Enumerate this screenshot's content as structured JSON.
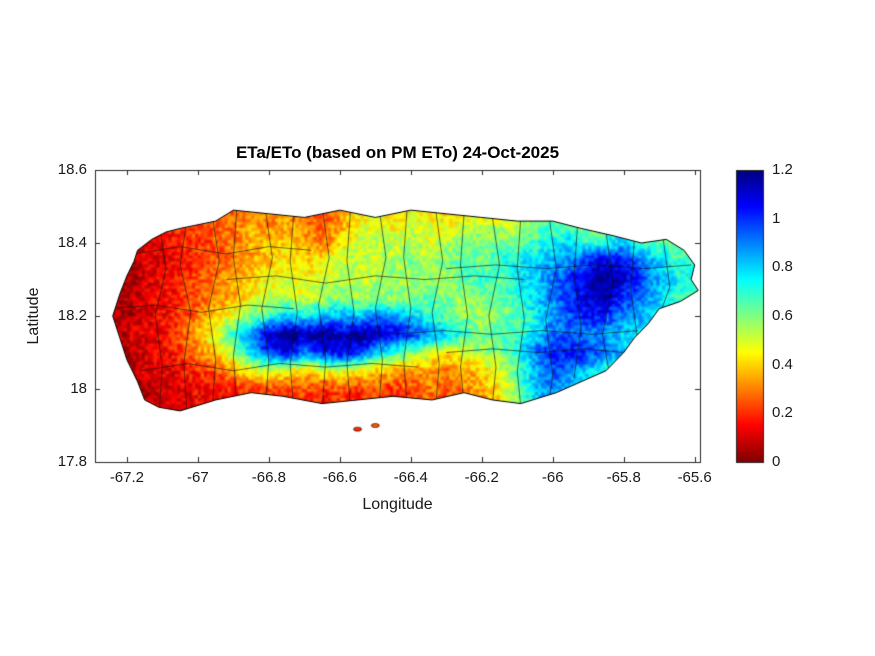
{
  "chart_data": {
    "type": "heatmap",
    "title": "ETa/ETo (based on PM ETo) 24-Oct-2025",
    "xlabel": "Longitude",
    "ylabel": "Latitude",
    "xlim": [
      -67.29,
      -65.585
    ],
    "ylim": [
      17.8,
      18.6
    ],
    "x_ticks": [
      -67.2,
      -67,
      -66.8,
      -66.6,
      -66.4,
      -66.2,
      -66,
      -65.8,
      -65.6
    ],
    "x_tick_labels": [
      "-67.2",
      "-67",
      "-66.8",
      "-66.6",
      "-66.4",
      "-66.2",
      "-66",
      "-65.8",
      "-65.6"
    ],
    "y_ticks": [
      17.8,
      18,
      18.2,
      18.4,
      18.6
    ],
    "y_tick_labels": [
      "17.8",
      "18",
      "18.2",
      "18.4",
      "18.6"
    ],
    "grid_on": false,
    "legend": "colorbar-right",
    "colorbar": {
      "clim": [
        0,
        1.2
      ],
      "ticks": [
        0,
        0.2,
        0.4,
        0.6,
        0.8,
        1,
        1.2
      ],
      "tick_labels": [
        "0",
        "0.2",
        "0.4",
        "0.6",
        "0.8",
        "1",
        "1.2"
      ],
      "colormap_stops": {
        "values": [
          0,
          0.15,
          0.3,
          0.45,
          0.6,
          0.75,
          0.9,
          1.05,
          1.2
        ],
        "colors": [
          "#800000",
          "#FF0000",
          "#FF8000",
          "#FFFF00",
          "#80FF80",
          "#00FFFF",
          "#0080FF",
          "#0000FF",
          "#000080"
        ]
      }
    },
    "grid": {
      "lon_start": -67.25,
      "lon_step": 0.05,
      "lat_start": 18.5,
      "lat_step": -0.05,
      "values": [
        [
          null,
          null,
          null,
          null,
          null,
          null,
          null,
          0.25,
          0.3,
          0.3,
          0.35,
          0.25,
          0.2,
          0.3,
          0.4,
          0.45,
          0.4,
          0.45,
          0.4,
          0.35,
          0.4,
          0.35,
          null,
          null,
          null,
          null,
          null,
          null,
          null,
          null,
          null,
          null,
          null,
          null
        ],
        [
          null,
          null,
          null,
          0.15,
          0.2,
          0.25,
          0.25,
          0.3,
          0.35,
          0.3,
          0.35,
          0.3,
          0.25,
          0.35,
          0.45,
          0.5,
          0.45,
          0.5,
          0.5,
          0.45,
          0.5,
          0.55,
          0.5,
          0.55,
          0.6,
          0.65,
          0.6,
          0.55,
          0.6,
          null,
          null,
          null,
          null,
          null
        ],
        [
          null,
          null,
          0.1,
          0.15,
          0.2,
          0.2,
          0.25,
          0.3,
          0.35,
          0.4,
          0.4,
          0.35,
          0.3,
          0.4,
          0.5,
          0.55,
          0.5,
          0.55,
          0.5,
          0.55,
          0.6,
          0.6,
          0.65,
          0.6,
          0.7,
          0.75,
          0.8,
          0.7,
          0.75,
          0.8,
          0.7,
          0.65,
          0.6,
          0.55
        ],
        [
          null,
          0.05,
          0.1,
          0.1,
          0.15,
          0.2,
          0.25,
          0.3,
          0.35,
          0.4,
          0.45,
          0.4,
          0.45,
          0.5,
          0.55,
          0.5,
          0.55,
          0.6,
          0.55,
          0.6,
          0.65,
          0.6,
          0.7,
          0.75,
          0.8,
          0.85,
          0.9,
          1.0,
          1.1,
          1.05,
          0.9,
          0.8,
          0.7,
          0.65
        ],
        [
          null,
          0.05,
          0.1,
          0.15,
          0.2,
          0.25,
          0.3,
          0.35,
          0.4,
          0.45,
          0.5,
          0.45,
          0.5,
          0.55,
          0.5,
          0.55,
          0.6,
          0.55,
          0.6,
          0.55,
          0.65,
          0.7,
          0.65,
          0.75,
          0.8,
          0.9,
          1.0,
          1.1,
          1.2,
          1.1,
          0.95,
          0.85,
          0.75,
          0.7
        ],
        [
          null,
          0.05,
          0.1,
          0.15,
          0.2,
          0.25,
          0.3,
          0.35,
          0.45,
          0.5,
          0.55,
          0.5,
          0.55,
          0.6,
          0.55,
          0.6,
          0.55,
          0.6,
          0.65,
          0.6,
          0.55,
          0.6,
          0.65,
          0.7,
          0.8,
          0.9,
          1.0,
          1.1,
          1.15,
          1.0,
          0.9,
          0.8,
          0.7,
          0.65
        ],
        [
          0.05,
          0.05,
          0.1,
          0.15,
          0.2,
          0.3,
          0.4,
          0.5,
          0.6,
          0.7,
          0.8,
          0.75,
          0.8,
          0.85,
          0.8,
          0.9,
          0.85,
          0.8,
          0.7,
          0.65,
          0.6,
          0.55,
          0.6,
          0.65,
          0.75,
          0.85,
          0.95,
          1.05,
          1.0,
          0.9,
          0.85,
          0.75,
          0.7,
          null
        ],
        [
          0.05,
          0.1,
          0.1,
          0.15,
          0.25,
          0.35,
          0.5,
          0.7,
          0.9,
          1.1,
          1.2,
          1.15,
          1.2,
          1.1,
          1.2,
          1.15,
          1.1,
          1.0,
          0.9,
          0.8,
          0.7,
          0.6,
          0.65,
          0.7,
          0.8,
          0.9,
          0.95,
          0.9,
          0.85,
          0.8,
          0.75,
          0.7,
          null,
          null
        ],
        [
          null,
          0.05,
          0.1,
          0.15,
          0.2,
          0.3,
          0.4,
          0.55,
          0.8,
          1.0,
          1.1,
          0.9,
          1.0,
          1.1,
          1.0,
          0.8,
          0.7,
          0.6,
          0.5,
          0.45,
          0.5,
          0.55,
          0.6,
          0.7,
          0.9,
          1.0,
          1.05,
          1.0,
          0.9,
          0.8,
          0.7,
          null,
          null,
          null
        ],
        [
          null,
          0.05,
          0.1,
          0.1,
          0.15,
          0.2,
          0.25,
          0.35,
          0.45,
          0.5,
          0.45,
          0.4,
          0.45,
          0.5,
          0.45,
          0.4,
          0.35,
          0.3,
          0.35,
          0.3,
          0.35,
          0.4,
          0.5,
          0.65,
          0.85,
          0.95,
          0.9,
          0.8,
          0.7,
          null,
          null,
          null,
          null,
          null
        ],
        [
          null,
          null,
          0.05,
          0.1,
          0.1,
          0.15,
          0.15,
          0.2,
          0.2,
          0.25,
          0.2,
          0.25,
          0.2,
          0.25,
          0.2,
          0.25,
          0.2,
          0.25,
          0.3,
          0.25,
          0.3,
          0.35,
          0.45,
          0.6,
          0.8,
          0.9,
          0.8,
          0.7,
          null,
          null,
          null,
          null,
          null,
          null
        ],
        [
          null,
          null,
          null,
          0.1,
          0.1,
          0.15,
          0.1,
          0.15,
          0.15,
          0.2,
          0.15,
          0.2,
          0.15,
          0.2,
          0.15,
          0.2,
          0.15,
          0.2,
          0.2,
          0.25,
          0.25,
          0.3,
          null,
          null,
          null,
          null,
          null,
          null,
          null,
          null,
          null,
          null,
          null,
          null
        ]
      ]
    },
    "island_outline": [
      [
        -67.17,
        18.38
      ],
      [
        -67.13,
        18.41
      ],
      [
        -67.09,
        18.43
      ],
      [
        -67.05,
        18.44
      ],
      [
        -66.95,
        18.46
      ],
      [
        -66.9,
        18.49
      ],
      [
        -66.8,
        18.48
      ],
      [
        -66.7,
        18.47
      ],
      [
        -66.6,
        18.49
      ],
      [
        -66.5,
        18.47
      ],
      [
        -66.4,
        18.49
      ],
      [
        -66.3,
        18.48
      ],
      [
        -66.2,
        18.47
      ],
      [
        -66.1,
        18.46
      ],
      [
        -66.0,
        18.46
      ],
      [
        -65.92,
        18.44
      ],
      [
        -65.83,
        18.42
      ],
      [
        -65.75,
        18.4
      ],
      [
        -65.68,
        18.41
      ],
      [
        -65.63,
        18.38
      ],
      [
        -65.6,
        18.34
      ],
      [
        -65.61,
        18.3
      ],
      [
        -65.59,
        18.27
      ],
      [
        -65.64,
        18.24
      ],
      [
        -65.7,
        18.22
      ],
      [
        -65.73,
        18.18
      ],
      [
        -65.77,
        18.14
      ],
      [
        -65.8,
        18.1
      ],
      [
        -65.85,
        18.05
      ],
      [
        -65.92,
        18.02
      ],
      [
        -65.99,
        17.99
      ],
      [
        -66.09,
        17.96
      ],
      [
        -66.17,
        17.97
      ],
      [
        -66.25,
        17.99
      ],
      [
        -66.34,
        17.97
      ],
      [
        -66.45,
        17.98
      ],
      [
        -66.55,
        17.97
      ],
      [
        -66.65,
        17.96
      ],
      [
        -66.76,
        17.98
      ],
      [
        -66.85,
        17.99
      ],
      [
        -66.95,
        17.97
      ],
      [
        -67.05,
        17.94
      ],
      [
        -67.11,
        17.95
      ],
      [
        -67.15,
        17.97
      ],
      [
        -67.17,
        18.02
      ],
      [
        -67.2,
        18.08
      ],
      [
        -67.22,
        18.14
      ],
      [
        -67.24,
        18.2
      ],
      [
        -67.22,
        18.26
      ],
      [
        -67.2,
        18.31
      ],
      [
        -67.18,
        18.35
      ]
    ],
    "boundaries": [
      [
        [
          -67.11,
          18.46
        ],
        [
          -67.09,
          18.33
        ],
        [
          -67.12,
          18.2
        ],
        [
          -67.1,
          18.06
        ],
        [
          -67.11,
          17.93
        ]
      ],
      [
        [
          -67.03,
          18.47
        ],
        [
          -67.05,
          18.34
        ],
        [
          -67.02,
          18.21
        ],
        [
          -67.04,
          18.07
        ],
        [
          -67.03,
          17.93
        ]
      ],
      [
        [
          -66.96,
          18.48
        ],
        [
          -66.94,
          18.35
        ],
        [
          -66.97,
          18.22
        ],
        [
          -66.95,
          18.08
        ],
        [
          -66.96,
          17.94
        ]
      ],
      [
        [
          -66.89,
          18.5
        ],
        [
          -66.9,
          18.36
        ],
        [
          -66.88,
          18.23
        ],
        [
          -66.9,
          18.09
        ],
        [
          -66.89,
          17.95
        ]
      ],
      [
        [
          -66.81,
          18.49
        ],
        [
          -66.79,
          18.36
        ],
        [
          -66.82,
          18.22
        ],
        [
          -66.8,
          18.08
        ],
        [
          -66.81,
          17.95
        ]
      ],
      [
        [
          -66.73,
          18.48
        ],
        [
          -66.74,
          18.35
        ],
        [
          -66.72,
          18.21
        ],
        [
          -66.74,
          18.07
        ],
        [
          -66.73,
          17.94
        ]
      ],
      [
        [
          -66.65,
          18.5
        ],
        [
          -66.63,
          18.36
        ],
        [
          -66.66,
          18.23
        ],
        [
          -66.64,
          18.08
        ],
        [
          -66.65,
          17.94
        ]
      ],
      [
        [
          -66.57,
          18.49
        ],
        [
          -66.58,
          18.35
        ],
        [
          -66.56,
          18.21
        ],
        [
          -66.58,
          18.07
        ],
        [
          -66.57,
          17.95
        ]
      ],
      [
        [
          -66.49,
          18.5
        ],
        [
          -66.47,
          18.36
        ],
        [
          -66.5,
          18.22
        ],
        [
          -66.48,
          18.08
        ],
        [
          -66.49,
          17.95
        ]
      ],
      [
        [
          -66.41,
          18.5
        ],
        [
          -66.42,
          18.36
        ],
        [
          -66.4,
          18.22
        ],
        [
          -66.42,
          18.08
        ],
        [
          -66.41,
          17.95
        ]
      ],
      [
        [
          -66.33,
          18.49
        ],
        [
          -66.31,
          18.35
        ],
        [
          -66.34,
          18.21
        ],
        [
          -66.32,
          18.07
        ],
        [
          -66.33,
          17.95
        ]
      ],
      [
        [
          -66.25,
          18.48
        ],
        [
          -66.26,
          18.34
        ],
        [
          -66.24,
          18.2
        ],
        [
          -66.26,
          18.06
        ],
        [
          -66.25,
          17.96
        ]
      ],
      [
        [
          -66.17,
          18.47
        ],
        [
          -66.15,
          18.34
        ],
        [
          -66.18,
          18.2
        ],
        [
          -66.16,
          18.06
        ],
        [
          -66.17,
          17.96
        ]
      ],
      [
        [
          -66.09,
          18.47
        ],
        [
          -66.1,
          18.33
        ],
        [
          -66.08,
          18.19
        ],
        [
          -66.1,
          18.05
        ],
        [
          -66.09,
          17.95
        ]
      ],
      [
        [
          -66.01,
          18.47
        ],
        [
          -65.99,
          18.33
        ],
        [
          -66.02,
          18.19
        ],
        [
          -66.0,
          18.04
        ],
        [
          -66.01,
          17.97
        ]
      ],
      [
        [
          -65.93,
          18.45
        ],
        [
          -65.94,
          18.31
        ],
        [
          -65.92,
          18.17
        ],
        [
          -65.94,
          18.03
        ]
      ],
      [
        [
          -65.85,
          18.43
        ],
        [
          -65.83,
          18.29
        ],
        [
          -65.86,
          18.15
        ],
        [
          -65.84,
          18.04
        ]
      ],
      [
        [
          -65.77,
          18.41
        ],
        [
          -65.78,
          18.27
        ],
        [
          -65.76,
          18.13
        ]
      ],
      [
        [
          -65.69,
          18.42
        ],
        [
          -65.67,
          18.28
        ],
        [
          -65.7,
          18.2
        ]
      ],
      [
        [
          -67.18,
          18.37
        ],
        [
          -67.05,
          18.39
        ],
        [
          -66.92,
          18.37
        ],
        [
          -66.8,
          18.39
        ],
        [
          -66.68,
          18.38
        ]
      ],
      [
        [
          -66.92,
          18.3
        ],
        [
          -66.78,
          18.31
        ],
        [
          -66.64,
          18.29
        ],
        [
          -66.5,
          18.31
        ],
        [
          -66.36,
          18.3
        ],
        [
          -66.22,
          18.31
        ],
        [
          -66.08,
          18.3
        ]
      ],
      [
        [
          -67.25,
          18.22
        ],
        [
          -67.12,
          18.23
        ],
        [
          -66.99,
          18.21
        ],
        [
          -66.86,
          18.23
        ],
        [
          -66.73,
          18.22
        ]
      ],
      [
        [
          -66.3,
          18.33
        ],
        [
          -66.16,
          18.34
        ],
        [
          -66.02,
          18.33
        ],
        [
          -65.88,
          18.34
        ],
        [
          -65.74,
          18.33
        ],
        [
          -65.61,
          18.34
        ]
      ],
      [
        [
          -66.45,
          18.15
        ],
        [
          -66.31,
          18.16
        ],
        [
          -66.17,
          18.15
        ],
        [
          -66.03,
          18.16
        ],
        [
          -65.89,
          18.15
        ],
        [
          -65.76,
          18.16
        ]
      ],
      [
        [
          -67.16,
          18.05
        ],
        [
          -67.03,
          18.07
        ],
        [
          -66.9,
          18.05
        ],
        [
          -66.77,
          18.07
        ],
        [
          -66.64,
          18.06
        ],
        [
          -66.51,
          18.07
        ],
        [
          -66.38,
          18.06
        ]
      ],
      [
        [
          -66.3,
          18.1
        ],
        [
          -66.17,
          18.11
        ],
        [
          -66.04,
          18.1
        ],
        [
          -65.91,
          18.11
        ],
        [
          -65.8,
          18.1
        ]
      ]
    ],
    "islets": [
      {
        "lon": -66.55,
        "lat": 17.89,
        "value": 0.2
      },
      {
        "lon": -66.5,
        "lat": 17.9,
        "value": 0.25
      }
    ]
  }
}
